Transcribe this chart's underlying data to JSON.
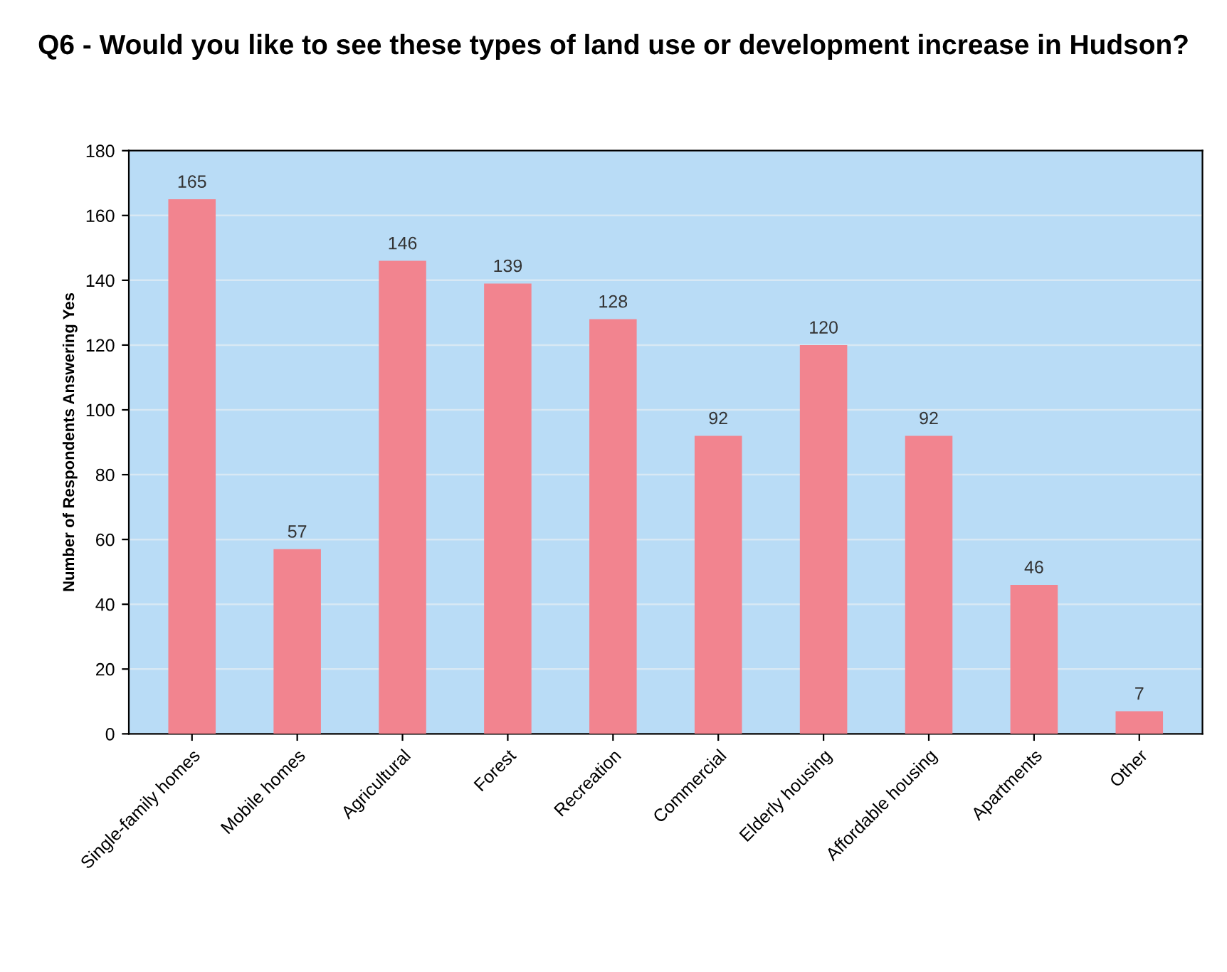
{
  "chart_data": {
    "type": "bar",
    "title": "Q6 - Would you like to see these types of land use or development increase in Hudson?",
    "ylabel": "Number of Respondents Answering Yes",
    "categories": [
      "Single-family homes",
      "Mobile homes",
      "Agricultural",
      "Forest",
      "Recreation",
      "Commercial",
      "Elderly housing",
      "Affordable housing",
      "Apartments",
      "Other"
    ],
    "values": [
      165,
      57,
      146,
      139,
      128,
      92,
      120,
      92,
      46,
      7
    ],
    "color": "#f2848f",
    "ylim": [
      0,
      180
    ],
    "yticks": [
      0,
      20,
      40,
      60,
      80,
      100,
      120,
      140,
      160,
      180
    ],
    "grid": "y",
    "data_labels": true
  }
}
